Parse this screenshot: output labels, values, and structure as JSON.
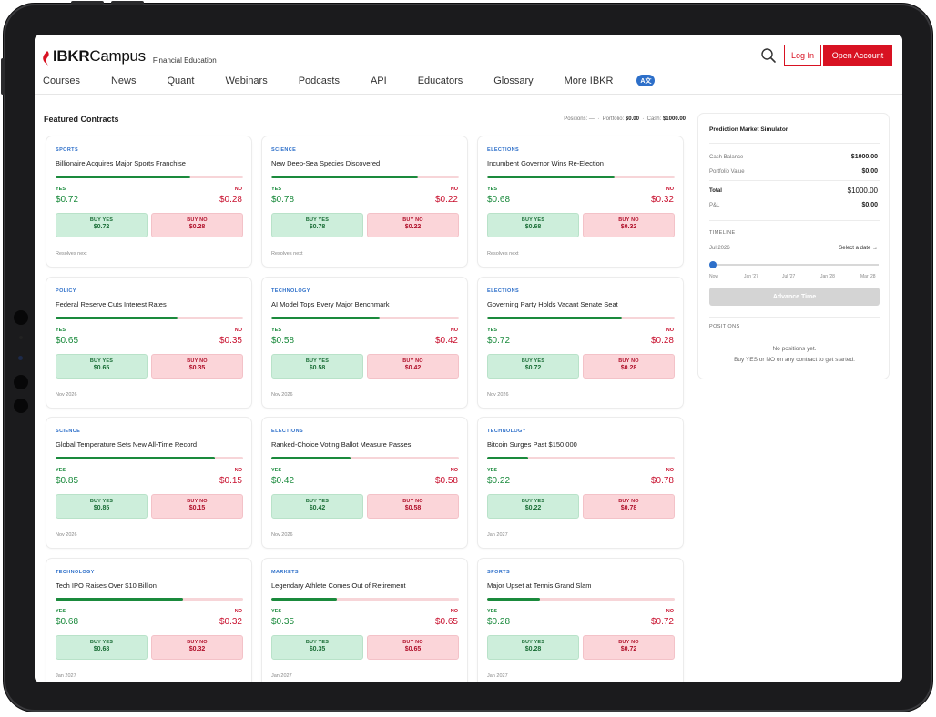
{
  "header": {
    "logo_ibkr": "IBKR",
    "logo_campus": "Campus",
    "subtitle": "Financial Education",
    "nav": [
      "Courses",
      "News",
      "Quant",
      "Webinars",
      "Podcasts",
      "API",
      "Educators",
      "Glossary",
      "More IBKR"
    ],
    "translate_label": "A文",
    "login_label": "Log In",
    "open_account_label": "Open Account"
  },
  "main": {
    "featured_title": "Featured Contracts",
    "stats": {
      "positions_label": "Positions:",
      "positions_value": "—",
      "portfolio_label": "Portfolio:",
      "portfolio_value": "$0.00",
      "cash_label": "Cash:",
      "cash_value": "$1000.00"
    }
  },
  "labels": {
    "yes": "YES",
    "no": "NO",
    "buy_yes": "BUY YES",
    "buy_no": "BUY NO"
  },
  "contracts": [
    {
      "category": "SPORTS",
      "title": "Billionaire Acquires Major Sports Franchise",
      "yes_price": "$0.72",
      "no_price": "$0.28",
      "yes_fraction": 0.72,
      "resolves": "Resolves next"
    },
    {
      "category": "SCIENCE",
      "title": "New Deep-Sea Species Discovered",
      "yes_price": "$0.78",
      "no_price": "$0.22",
      "yes_fraction": 0.78,
      "resolves": "Resolves next"
    },
    {
      "category": "ELECTIONS",
      "title": "Incumbent Governor Wins Re-Election",
      "yes_price": "$0.68",
      "no_price": "$0.32",
      "yes_fraction": 0.68,
      "resolves": "Resolves next"
    },
    {
      "category": "POLICY",
      "title": "Federal Reserve Cuts Interest Rates",
      "yes_price": "$0.65",
      "no_price": "$0.35",
      "yes_fraction": 0.65,
      "resolves": "Nov 2026"
    },
    {
      "category": "TECHNOLOGY",
      "title": "AI Model Tops Every Major Benchmark",
      "yes_price": "$0.58",
      "no_price": "$0.42",
      "yes_fraction": 0.58,
      "resolves": "Nov 2026"
    },
    {
      "category": "ELECTIONS",
      "title": "Governing Party Holds Vacant Senate Seat",
      "yes_price": "$0.72",
      "no_price": "$0.28",
      "yes_fraction": 0.72,
      "resolves": "Nov 2026"
    },
    {
      "category": "SCIENCE",
      "title": "Global Temperature Sets New All-Time Record",
      "yes_price": "$0.85",
      "no_price": "$0.15",
      "yes_fraction": 0.85,
      "resolves": "Nov 2026"
    },
    {
      "category": "ELECTIONS",
      "title": "Ranked-Choice Voting Ballot Measure Passes",
      "yes_price": "$0.42",
      "no_price": "$0.58",
      "yes_fraction": 0.42,
      "resolves": "Nov 2026"
    },
    {
      "category": "TECHNOLOGY",
      "title": "Bitcoin Surges Past $150,000",
      "yes_price": "$0.22",
      "no_price": "$0.78",
      "yes_fraction": 0.22,
      "resolves": "Jan 2027"
    },
    {
      "category": "TECHNOLOGY",
      "title": "Tech IPO Raises Over $10 Billion",
      "yes_price": "$0.68",
      "no_price": "$0.32",
      "yes_fraction": 0.68,
      "resolves": "Jan 2027"
    },
    {
      "category": "MARKETS",
      "title": "Legendary Athlete Comes Out of Retirement",
      "yes_price": "$0.35",
      "no_price": "$0.65",
      "yes_fraction": 0.35,
      "resolves": "Jan 2027"
    },
    {
      "category": "SPORTS",
      "title": "Major Upset at Tennis Grand Slam",
      "yes_price": "$0.28",
      "no_price": "$0.72",
      "yes_fraction": 0.28,
      "resolves": "Jan 2027"
    }
  ],
  "simulator": {
    "title": "Prediction Market Simulator",
    "cash_balance_label": "Cash Balance",
    "cash_balance_value": "$1000.00",
    "portfolio_value_label": "Portfolio Value",
    "portfolio_value_value": "$0.00",
    "total_label": "Total",
    "total_value": "$1000.00",
    "pnl_label": "P&L",
    "pnl_value": "$0.00",
    "timeline_label": "TIMELINE",
    "current_date": "Jul 2026",
    "select_date_label": "Select a date →",
    "ticks": [
      "Now",
      "Jan '27",
      "Jul '27",
      "Jan '28",
      "Mar '28"
    ],
    "advance_label": "Advance Time",
    "positions_label": "POSITIONS",
    "empty_line1": "No positions yet.",
    "empty_line2": "Buy YES or NO on any contract to get started."
  },
  "colors": {
    "brand_red": "#d81222",
    "yes_green": "#1a8a3c",
    "no_red": "#c8102e",
    "category_blue": "#2d6fc9"
  }
}
